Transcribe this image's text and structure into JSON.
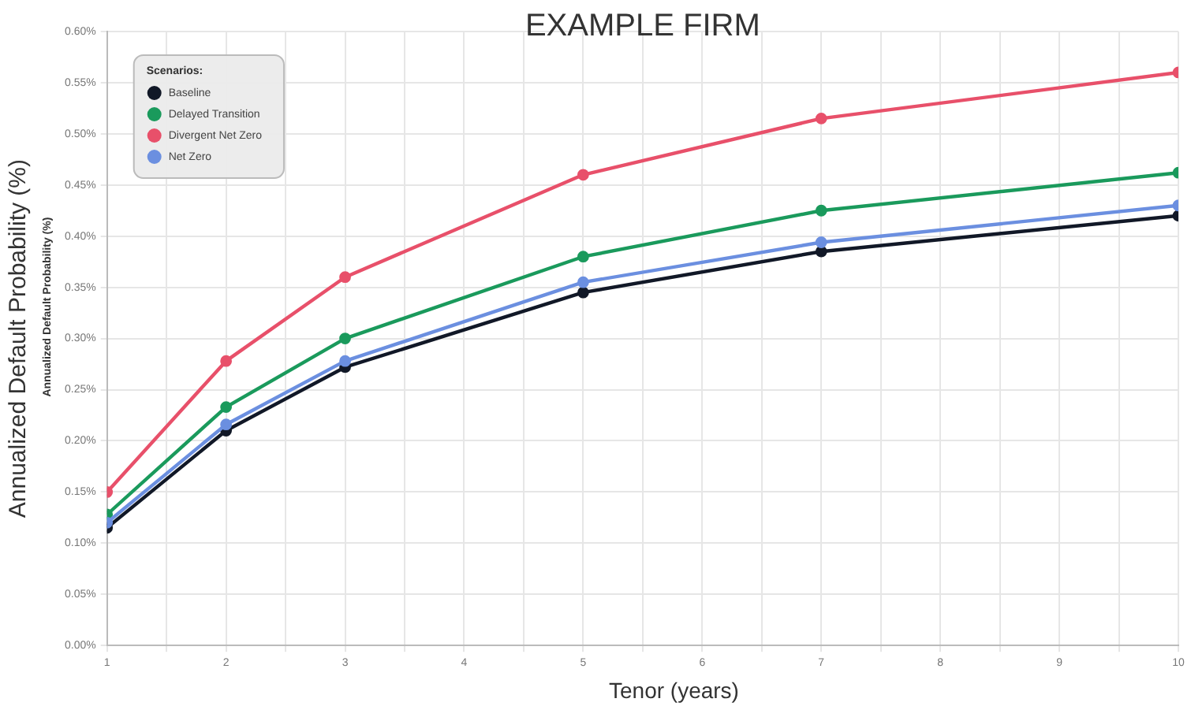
{
  "chart_data": {
    "type": "line",
    "title": "EXAMPLE FIRM",
    "xlabel": "Tenor (years)",
    "ylabel": "Annualized Default Probability (%)",
    "annotations": [
      "Annualized Default Probability (%)"
    ],
    "legend_title": "Scenarios:",
    "legend": "top left",
    "grid": true,
    "marker": "circle",
    "line_style": "solid",
    "x": [
      1,
      2,
      3,
      5,
      7,
      10
    ],
    "xlim": [
      1,
      10
    ],
    "xticks": [
      1,
      {
        "value": 1.5,
        "label": null
      },
      2,
      {
        "value": 2.5,
        "label": null
      },
      3,
      {
        "value": 3.5,
        "label": null
      },
      4,
      {
        "value": 4.5,
        "label": null
      },
      5,
      {
        "value": 5.5,
        "label": null
      },
      6,
      {
        "value": 6.5,
        "label": null
      },
      7,
      {
        "value": 7.5,
        "label": null
      },
      8,
      {
        "value": 8.5,
        "label": null
      },
      9,
      {
        "value": 9.5,
        "label": null
      },
      10
    ],
    "ylim": [
      0,
      0.6
    ],
    "yticks": [
      {
        "value": 0,
        "label": "0.00%"
      },
      {
        "value": 0.05,
        "label": "0.05%"
      },
      {
        "value": 0.1,
        "label": "0.10%"
      },
      {
        "value": 0.15,
        "label": "0.15%"
      },
      {
        "value": 0.2,
        "label": "0.20%"
      },
      {
        "value": 0.25,
        "label": "0.25%"
      },
      {
        "value": 0.3,
        "label": "0.30%"
      },
      {
        "value": 0.35,
        "label": "0.35%"
      },
      {
        "value": 0.4,
        "label": "0.40%"
      },
      {
        "value": 0.45,
        "label": "0.45%"
      },
      {
        "value": 0.5,
        "label": "0.50%"
      },
      {
        "value": 0.55,
        "label": "0.55%"
      },
      {
        "value": 0.6,
        "label": "0.60%"
      }
    ],
    "series": [
      {
        "name": "Baseline",
        "color": "#111827",
        "values": [
          0.115,
          0.21,
          0.272,
          0.345,
          0.385,
          0.42
        ]
      },
      {
        "name": "Delayed Transition",
        "color": "#1a9a5c",
        "values": [
          0.128,
          0.233,
          0.3,
          0.38,
          0.425,
          0.462
        ]
      },
      {
        "name": "Divergent Net Zero",
        "color": "#e8506a",
        "values": [
          0.15,
          0.278,
          0.36,
          0.46,
          0.515,
          0.56
        ]
      },
      {
        "name": "Net Zero",
        "color": "#6b8fe0",
        "values": [
          0.12,
          0.216,
          0.278,
          0.355,
          0.394,
          0.43
        ]
      }
    ]
  }
}
